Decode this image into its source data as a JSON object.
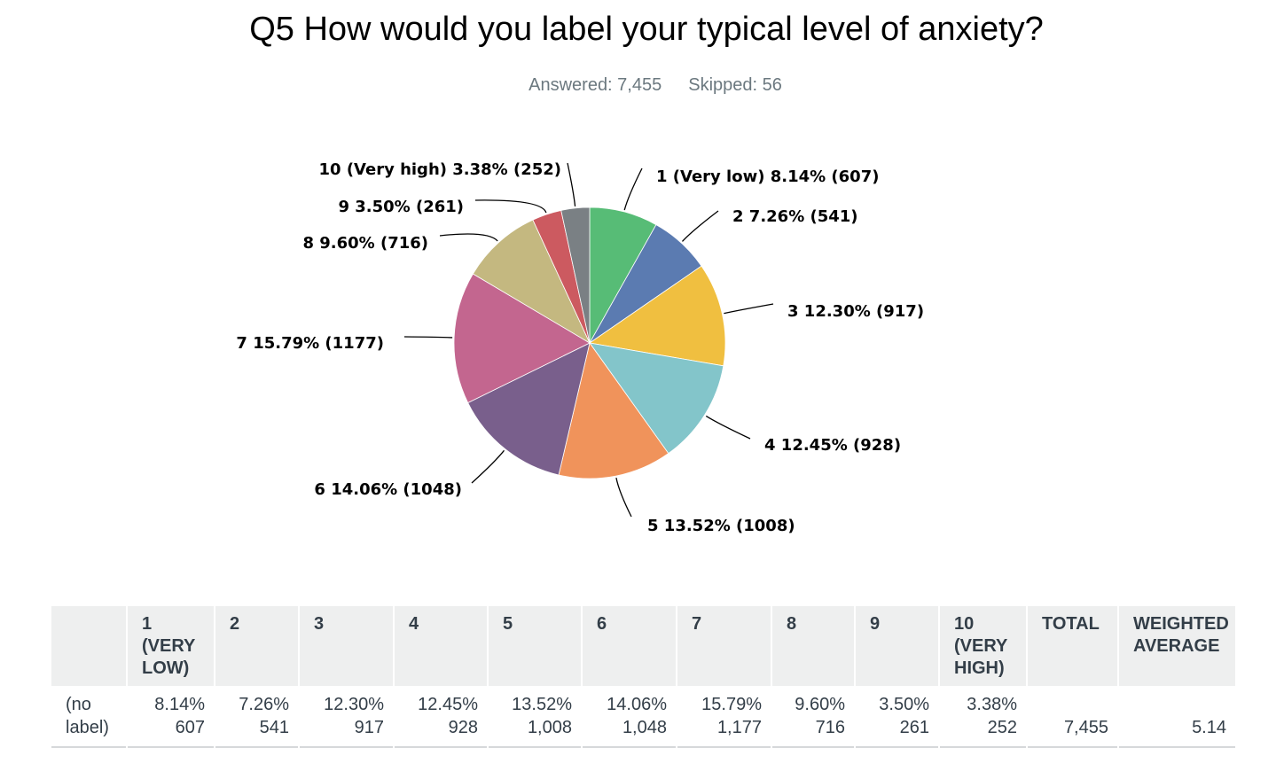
{
  "title": "Q5 How would you label your typical level of anxiety?",
  "answered": "Answered: 7,455",
  "skipped": "Skipped: 56",
  "chart_data": {
    "type": "pie",
    "title": "Q5 How would you label your typical level of anxiety?",
    "labels": [
      "1 (Very low)",
      "2",
      "3",
      "4",
      "5",
      "6",
      "7",
      "8",
      "9",
      "10 (Very high)"
    ],
    "percents": [
      8.14,
      7.26,
      12.3,
      12.45,
      13.52,
      14.06,
      15.79,
      9.6,
      3.5,
      3.38
    ],
    "counts": [
      607,
      541,
      917,
      928,
      1008,
      1048,
      1177,
      716,
      261,
      252
    ],
    "slice_labels": [
      "1 (Very low) 8.14% (607)",
      "2 7.26% (541)",
      "3 12.30% (917)",
      "4 12.45% (928)",
      "5 13.52% (1008)",
      "6 14.06% (1048)",
      "7 15.79% (1177)",
      "8 9.60% (716)",
      "9 3.50% (261)",
      "10 (Very high) 3.38% (252)"
    ],
    "colors": [
      "#57bc76",
      "#5b7bb1",
      "#f0bf40",
      "#83c5ca",
      "#f0935b",
      "#795f8c",
      "#c3668f",
      "#c4b880",
      "#cc5a60",
      "#7a8084"
    ]
  },
  "table": {
    "headers": [
      "",
      "1\n(VERY\nLOW)",
      "2",
      "3",
      "4",
      "5",
      "6",
      "7",
      "8",
      "9",
      "10\n(VERY\nHIGH)",
      "TOTAL",
      "WEIGHTED\nAVERAGE"
    ],
    "row_label": "(no\nlabel)",
    "cells": [
      [
        "8.14%",
        "607"
      ],
      [
        "7.26%",
        "541"
      ],
      [
        "12.30%",
        "917"
      ],
      [
        "12.45%",
        "928"
      ],
      [
        "13.52%",
        "1,008"
      ],
      [
        "14.06%",
        "1,048"
      ],
      [
        "15.79%",
        "1,177"
      ],
      [
        "9.60%",
        "716"
      ],
      [
        "3.50%",
        "261"
      ],
      [
        "3.38%",
        "252"
      ]
    ],
    "total": "7,455",
    "weighted_average": "5.14"
  }
}
